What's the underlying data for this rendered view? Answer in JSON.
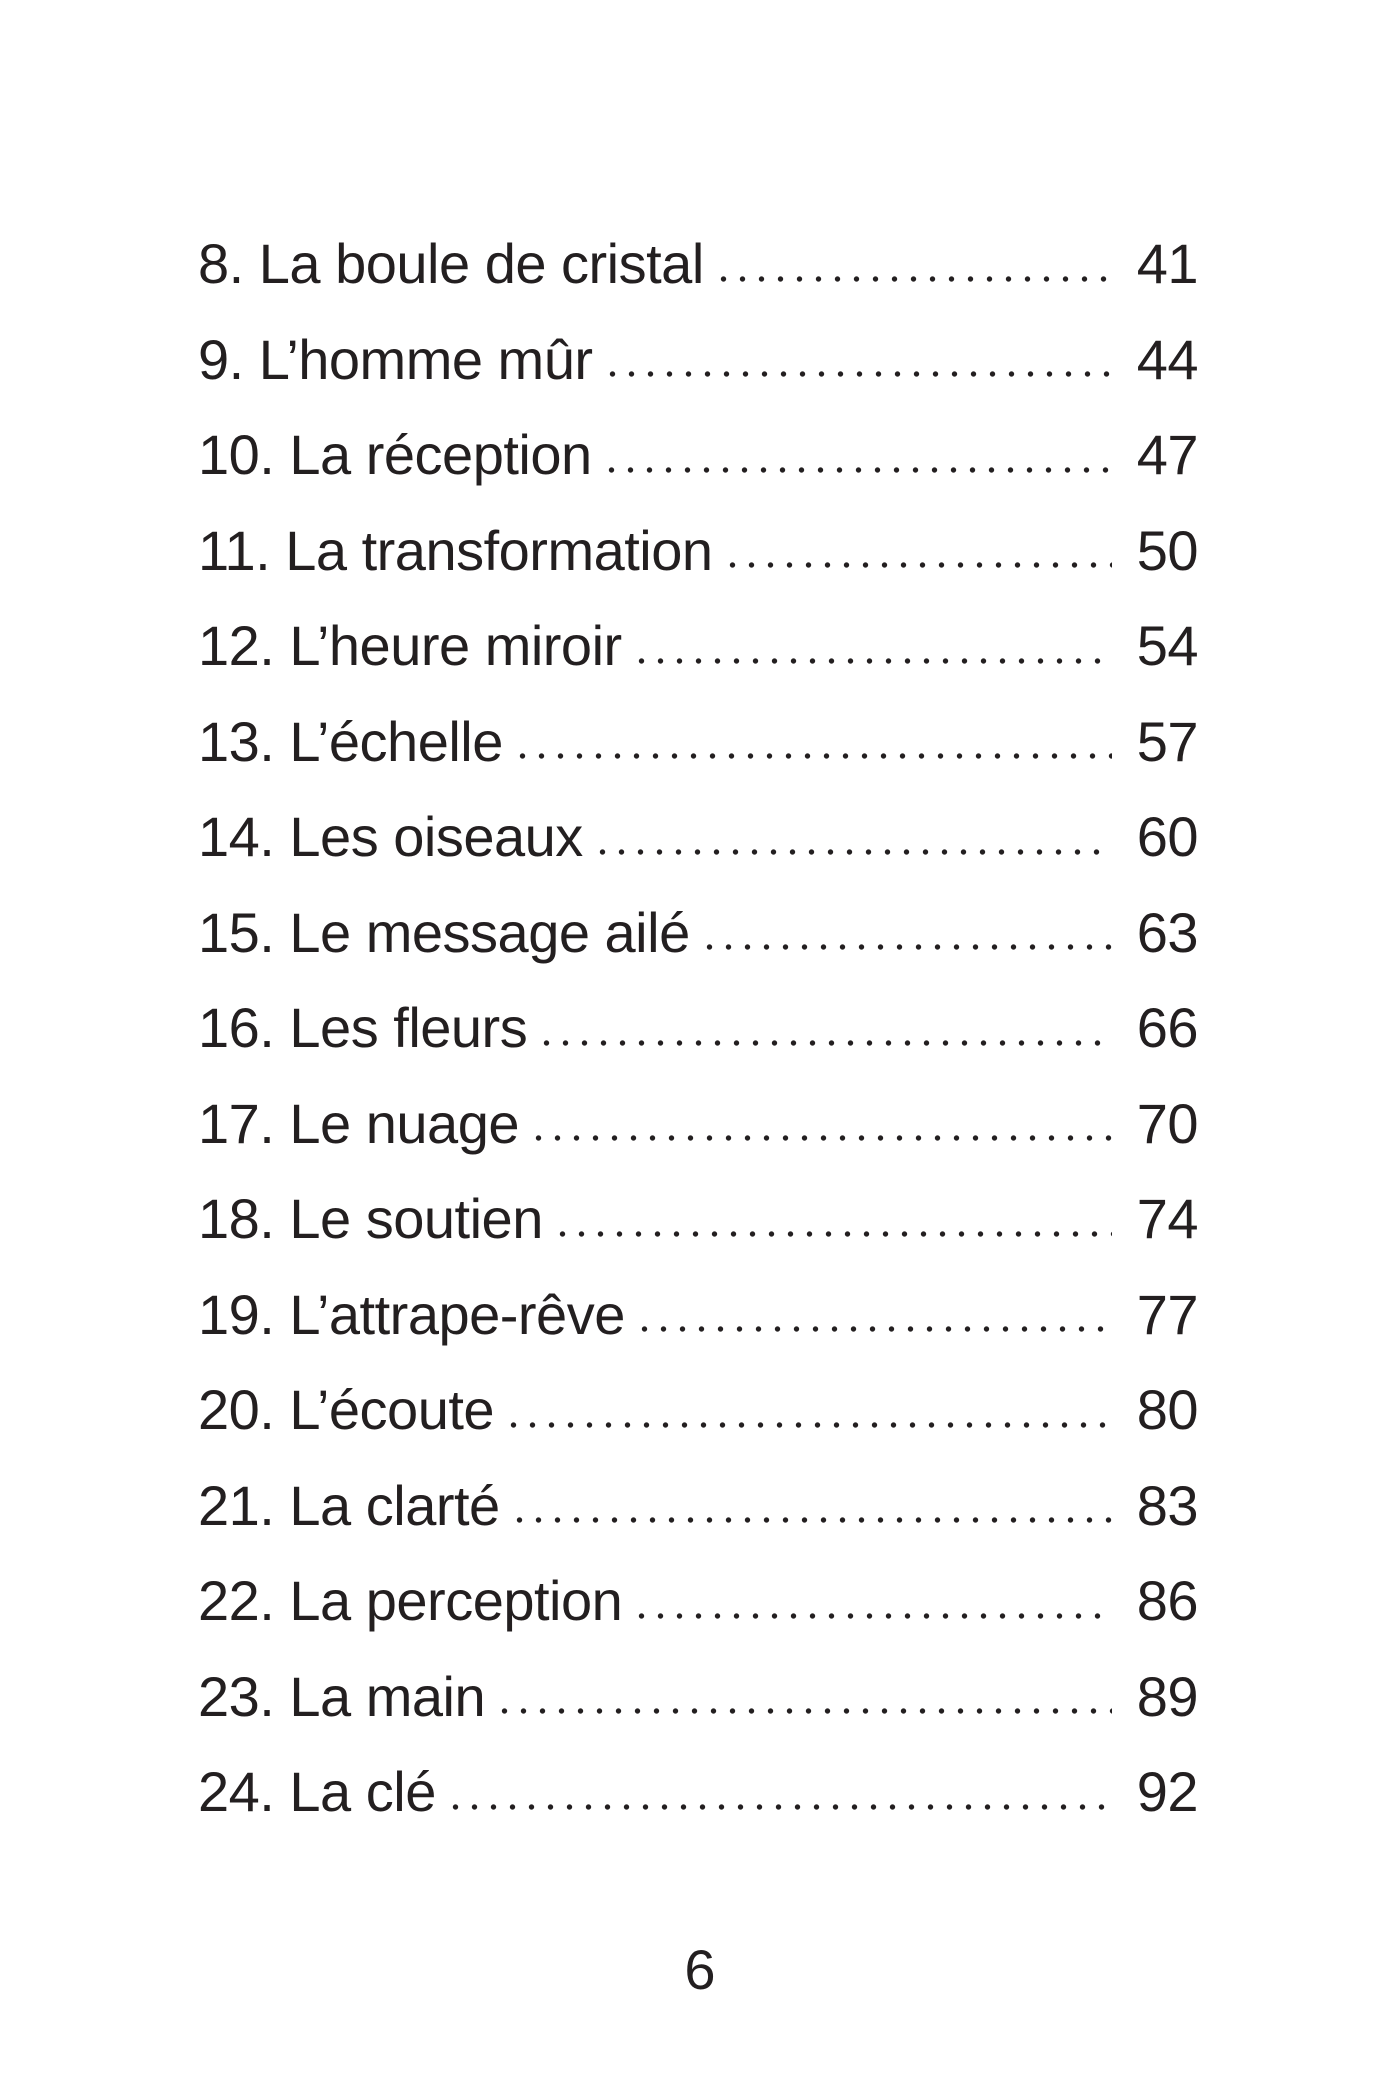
{
  "colors": {
    "text": "#231f20",
    "background": "#ffffff"
  },
  "document": {
    "type": "table-of-contents",
    "entries": [
      {
        "label": "8. La boule de cristal",
        "page": "41"
      },
      {
        "label": "9. L’homme mûr",
        "page": "44"
      },
      {
        "label": "10. La réception",
        "page": "47"
      },
      {
        "label": "11. La transformation",
        "page": "50"
      },
      {
        "label": "12. L’heure miroir",
        "page": "54"
      },
      {
        "label": "13. L’échelle",
        "page": "57"
      },
      {
        "label": "14. Les oiseaux",
        "page": "60"
      },
      {
        "label": "15. Le message ailé",
        "page": "63"
      },
      {
        "label": "16. Les fleurs",
        "page": "66"
      },
      {
        "label": "17. Le nuage",
        "page": "70"
      },
      {
        "label": "18. Le soutien",
        "page": "74"
      },
      {
        "label": "19. L’attrape-rêve",
        "page": "77"
      },
      {
        "label": "20. L’écoute",
        "page": "80"
      },
      {
        "label": "21. La clarté",
        "page": "83"
      },
      {
        "label": "22. La perception",
        "page": "86"
      },
      {
        "label": "23. La main",
        "page": "89"
      },
      {
        "label": "24. La clé",
        "page": "92"
      }
    ],
    "footer_page_number": "6"
  }
}
